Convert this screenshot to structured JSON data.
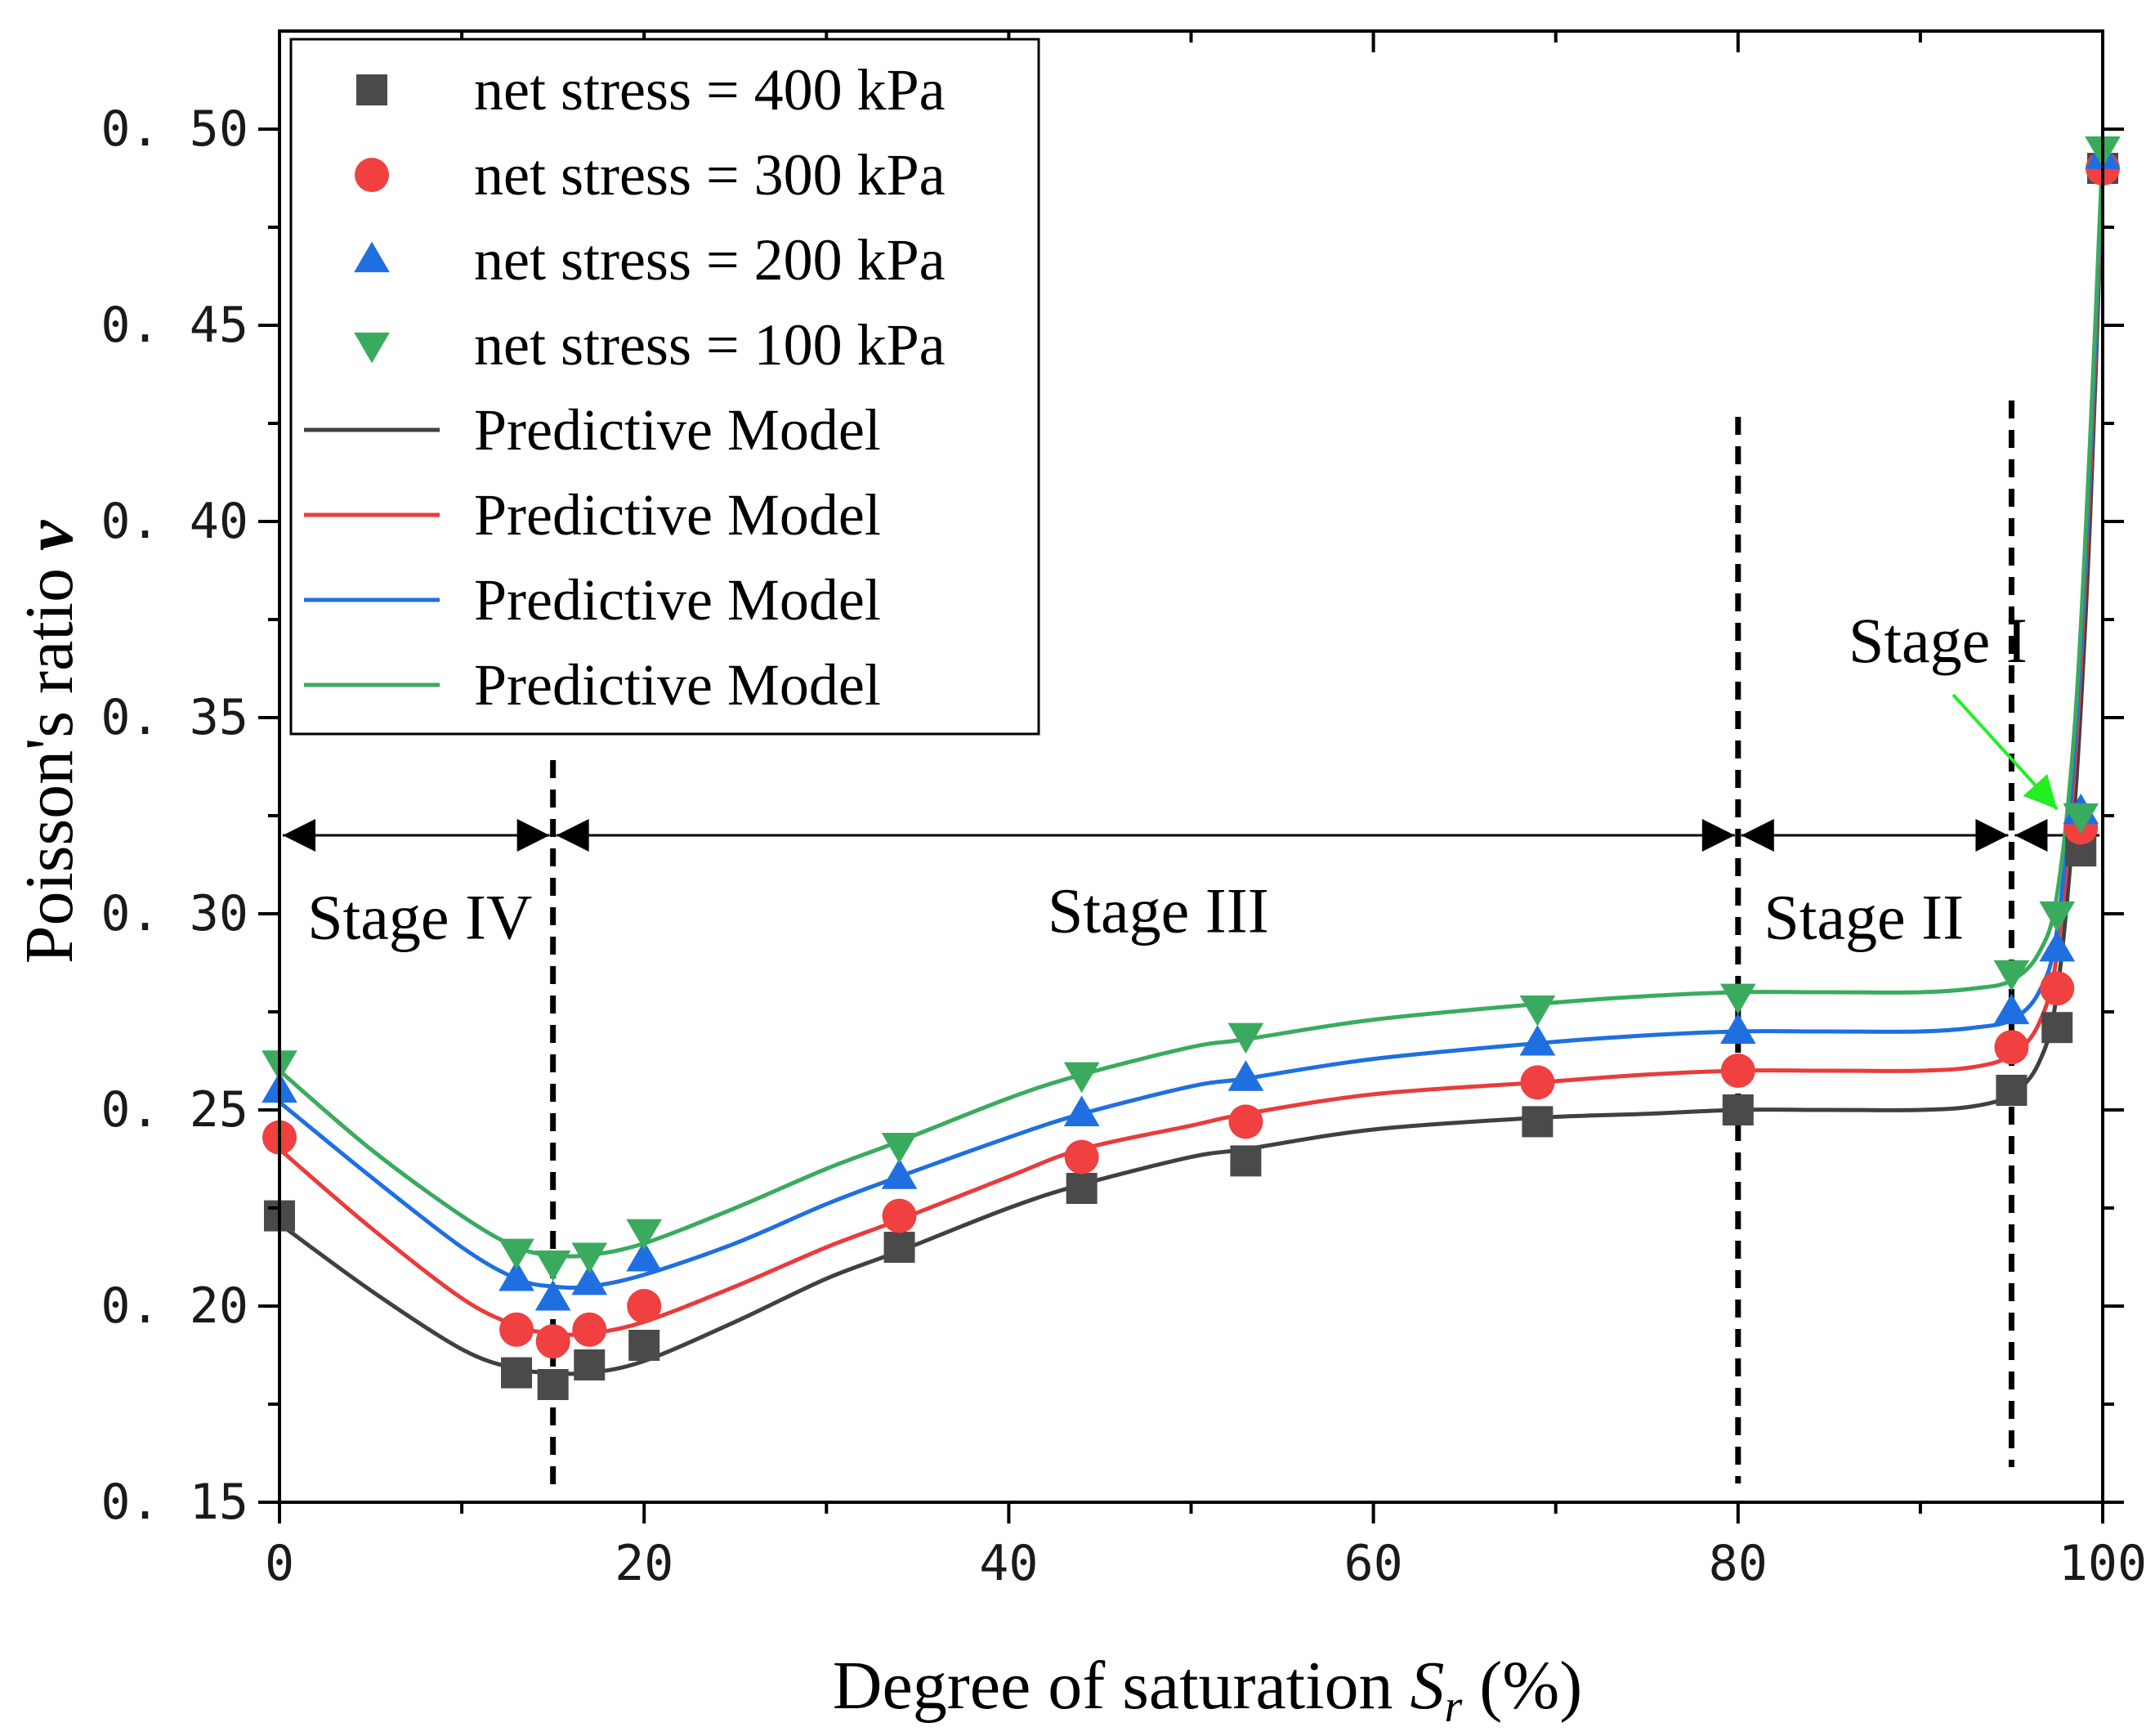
{
  "chart_data": {
    "type": "scatter",
    "title": "",
    "xlabel": "Degree of saturation",
    "xlabel_symbol": "S",
    "xlabel_subscript": "r",
    "xlabel_unit": "(%)",
    "ylabel": "Poisson's ratio",
    "ylabel_symbol": "v",
    "xlim": [
      0,
      100
    ],
    "ylim": [
      0.15,
      0.525
    ],
    "x_ticks": [
      0,
      20,
      40,
      60,
      80,
      100
    ],
    "x_tick_labels": [
      "0",
      "20",
      "40",
      "60",
      "80",
      "100"
    ],
    "y_ticks": [
      0.15,
      0.2,
      0.25,
      0.3,
      0.35,
      0.4,
      0.45,
      0.5
    ],
    "y_tick_labels": [
      "0. 15",
      "0. 20",
      "0. 25",
      "0. 30",
      "0. 35",
      "0. 40",
      "0. 45",
      "0. 50"
    ],
    "grid": false,
    "legend_position": "top-left",
    "series": [
      {
        "name": "net stress = 400 kPa",
        "marker": "square",
        "color": "#4a4a4a",
        "x": [
          0,
          13,
          15,
          17,
          20,
          34,
          44,
          53,
          69,
          80,
          95,
          97.5,
          98.8,
          100
        ],
        "y": [
          0.223,
          0.183,
          0.18,
          0.185,
          0.19,
          0.215,
          0.23,
          0.237,
          0.247,
          0.25,
          0.255,
          0.271,
          0.316,
          0.49
        ]
      },
      {
        "name": "net stress = 300 kPa",
        "marker": "circle",
        "color": "#f04040",
        "x": [
          0,
          13,
          15,
          17,
          20,
          34,
          44,
          53,
          69,
          80,
          95,
          97.5,
          98.8,
          100
        ],
        "y": [
          0.243,
          0.194,
          0.191,
          0.194,
          0.2,
          0.223,
          0.238,
          0.247,
          0.257,
          0.26,
          0.266,
          0.281,
          0.322,
          0.49
        ]
      },
      {
        "name": "net stress = 200 kPa",
        "marker": "triangle-up",
        "color": "#1f6fe0",
        "x": [
          0,
          13,
          15,
          17,
          20,
          34,
          44,
          53,
          69,
          80,
          95,
          97.5,
          98.8,
          100
        ],
        "y": [
          0.255,
          0.207,
          0.202,
          0.206,
          0.212,
          0.233,
          0.249,
          0.258,
          0.267,
          0.27,
          0.275,
          0.291,
          0.326,
          0.493
        ]
      },
      {
        "name": "net stress = 100 kPa",
        "marker": "triangle-down",
        "color": "#3aab5e",
        "x": [
          0,
          13,
          15,
          17,
          20,
          34,
          44,
          53,
          69,
          80,
          95,
          97.5,
          98.8,
          100
        ],
        "y": [
          0.262,
          0.214,
          0.211,
          0.213,
          0.219,
          0.241,
          0.259,
          0.269,
          0.276,
          0.279,
          0.285,
          0.3,
          0.325,
          0.495
        ]
      }
    ],
    "model_series": [
      {
        "name": "Predictive Model",
        "color": "#404040",
        "x": [
          0,
          5,
          10,
          13,
          15,
          17,
          20,
          25,
          30,
          34,
          40,
          44,
          50,
          53,
          60,
          69,
          75,
          80,
          85,
          90,
          93,
          95,
          96.5,
          97.5,
          98.5,
          99.3,
          100
        ],
        "y": [
          0.221,
          0.204,
          0.189,
          0.184,
          0.183,
          0.183,
          0.186,
          0.196,
          0.207,
          0.214,
          0.225,
          0.231,
          0.238,
          0.24,
          0.245,
          0.248,
          0.249,
          0.25,
          0.25,
          0.25,
          0.251,
          0.254,
          0.262,
          0.28,
          0.33,
          0.4,
          0.49
        ]
      },
      {
        "name": "Predictive Model",
        "color": "#e83c3c",
        "x": [
          0,
          5,
          10,
          13,
          15,
          17,
          20,
          25,
          30,
          34,
          40,
          44,
          50,
          53,
          60,
          69,
          75,
          80,
          85,
          90,
          93,
          95,
          96.5,
          97.5,
          98.5,
          99.3,
          100
        ],
        "y": [
          0.24,
          0.22,
          0.202,
          0.195,
          0.193,
          0.193,
          0.196,
          0.205,
          0.215,
          0.222,
          0.233,
          0.24,
          0.246,
          0.249,
          0.254,
          0.257,
          0.259,
          0.26,
          0.26,
          0.26,
          0.261,
          0.264,
          0.272,
          0.29,
          0.34,
          0.41,
          0.49
        ]
      },
      {
        "name": "Predictive Model",
        "color": "#1f6fe0",
        "x": [
          0,
          5,
          10,
          13,
          15,
          17,
          20,
          25,
          30,
          34,
          40,
          44,
          50,
          53,
          60,
          69,
          75,
          80,
          85,
          90,
          93,
          95,
          96.5,
          97.5,
          98.5,
          99.3,
          100
        ],
        "y": [
          0.252,
          0.233,
          0.215,
          0.207,
          0.205,
          0.205,
          0.208,
          0.216,
          0.226,
          0.233,
          0.243,
          0.249,
          0.256,
          0.258,
          0.263,
          0.267,
          0.269,
          0.27,
          0.27,
          0.27,
          0.271,
          0.273,
          0.28,
          0.296,
          0.345,
          0.415,
          0.493
        ]
      },
      {
        "name": "Predictive Model",
        "color": "#3aab5e",
        "x": [
          0,
          5,
          10,
          13,
          15,
          17,
          20,
          25,
          30,
          34,
          40,
          44,
          50,
          53,
          60,
          69,
          75,
          80,
          85,
          90,
          93,
          95,
          96.5,
          97.5,
          98.5,
          99.3,
          100
        ],
        "y": [
          0.26,
          0.24,
          0.223,
          0.215,
          0.213,
          0.213,
          0.216,
          0.225,
          0.235,
          0.242,
          0.253,
          0.259,
          0.266,
          0.268,
          0.273,
          0.277,
          0.279,
          0.28,
          0.28,
          0.28,
          0.281,
          0.283,
          0.29,
          0.305,
          0.35,
          0.42,
          0.495
        ]
      }
    ],
    "stage_boundaries_x": [
      15,
      80,
      95
    ],
    "stages": [
      {
        "label": "Stage IV",
        "from": 0,
        "to": 15
      },
      {
        "label": "Stage III",
        "from": 15,
        "to": 80
      },
      {
        "label": "Stage II",
        "from": 80,
        "to": 95
      },
      {
        "label": "Stage I",
        "from": 95,
        "to": 100
      }
    ],
    "stage_arrow_y": 0.32,
    "stage_label_y": 0.302,
    "annotation": {
      "text": "Stage I",
      "points_to": {
        "x": 97.5,
        "y": 0.325
      },
      "arrow_color": "#22ee22"
    }
  }
}
